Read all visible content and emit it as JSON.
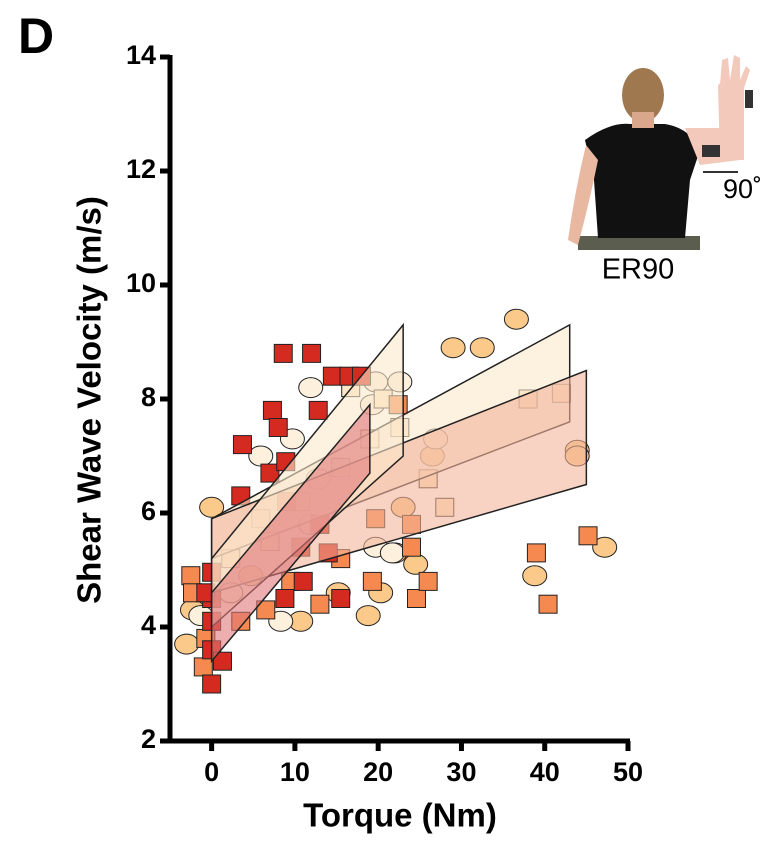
{
  "chart_data": {
    "type": "scatter",
    "panel_label": "D",
    "xlabel": "Torque (Nm)",
    "ylabel": "Shear Wave Velocity (m/s)",
    "xlim": [
      -5,
      50
    ],
    "xticks": [
      0,
      10,
      20,
      30,
      40,
      50
    ],
    "ylim": [
      2,
      14
    ],
    "yticks": [
      2,
      4,
      6,
      8,
      10,
      12,
      14
    ],
    "inset": {
      "label": "ER90",
      "angle_label": "90˚"
    },
    "series": [
      {
        "marker": "circle",
        "color": "#fbc98a",
        "x": [
          -3,
          -2.3,
          0,
          4.7,
          10.7,
          15.2,
          20.3,
          22,
          24.5,
          29,
          32.5,
          36.6,
          38.8,
          43.9,
          43.9,
          47.2,
          18.8,
          26.5,
          23
        ],
        "values": [
          3.7,
          4.3,
          6.1,
          4.9,
          4.1,
          4.6,
          4.6,
          5.3,
          5.1,
          8.9,
          8.9,
          9.4,
          4.9,
          7.1,
          7.0,
          5.4,
          4.2,
          7.0,
          6.1
        ]
      },
      {
        "marker": "circle",
        "color": "#fdf1de",
        "x": [
          -1.3,
          2.3,
          5.9,
          9.7,
          11.9,
          19.7,
          19.3,
          22.6,
          19.7,
          21.7,
          8.3,
          11.9,
          26.9,
          12.8
        ],
        "values": [
          4.2,
          4.6,
          7.0,
          7.3,
          8.2,
          8.3,
          7.9,
          8.3,
          5.4,
          5.3,
          4.1,
          5.8,
          7.3,
          6.6
        ]
      },
      {
        "marker": "square",
        "color": "#fde6c4",
        "x": [
          5.9,
          10.7,
          15.5,
          19,
          20.6,
          16.7,
          2.3,
          7,
          26,
          28,
          38,
          42,
          22.6
        ],
        "values": [
          5.9,
          6.2,
          6.8,
          7.3,
          8.0,
          8.2,
          5.2,
          5.5,
          6.6,
          6.1,
          8.0,
          8.1,
          7.5
        ]
      },
      {
        "marker": "square",
        "color": "#f5894f",
        "x": [
          -2.5,
          -2.3,
          -0.7,
          -1,
          3.5,
          6.5,
          9.5,
          13,
          19.3,
          24,
          24,
          24.6,
          26,
          39,
          40.4,
          45.2,
          19.7,
          22.4,
          15.5
        ],
        "values": [
          4.9,
          4.6,
          3.8,
          3.3,
          4.1,
          4.3,
          4.8,
          4.4,
          4.8,
          5.8,
          5.4,
          4.5,
          4.8,
          5.3,
          4.4,
          5.6,
          5.9,
          7.9,
          5.2
        ]
      },
      {
        "marker": "square",
        "color": "#d42a20",
        "x": [
          0,
          0,
          0,
          0,
          1.3,
          3.7,
          3.5,
          7.3,
          8,
          7,
          8.9,
          9,
          10.7,
          8.8,
          11,
          8.6,
          12,
          12.8,
          14.5,
          16.5,
          18,
          15.5,
          14,
          13,
          0,
          -0.7
        ],
        "values": [
          4.96,
          4.5,
          3.6,
          3.0,
          3.4,
          7.2,
          6.3,
          7.8,
          7.5,
          6.7,
          6.9,
          6.2,
          5.4,
          4.5,
          4.8,
          8.8,
          8.8,
          7.8,
          8.4,
          8.4,
          8.4,
          4.5,
          5.3,
          5.8,
          4.1,
          4.6
        ]
      }
    ],
    "fits": [
      {
        "color": "#fbe8cc",
        "x": [
          0,
          43
        ],
        "lower": [
          5.2,
          7.6
        ],
        "upper": [
          5.9,
          9.3
        ]
      },
      {
        "color": "#f4b49a",
        "x": [
          0,
          45
        ],
        "lower": [
          4.6,
          6.5
        ],
        "upper": [
          5.9,
          8.5
        ]
      },
      {
        "color": "#fbe8cc",
        "x": [
          0,
          23
        ],
        "lower": [
          4.0,
          7.0
        ],
        "upper": [
          5.2,
          9.3
        ]
      },
      {
        "color": "#e0787a",
        "x": [
          0,
          19
        ],
        "lower": [
          3.4,
          6.7
        ],
        "upper": [
          4.6,
          7.9
        ]
      }
    ]
  }
}
